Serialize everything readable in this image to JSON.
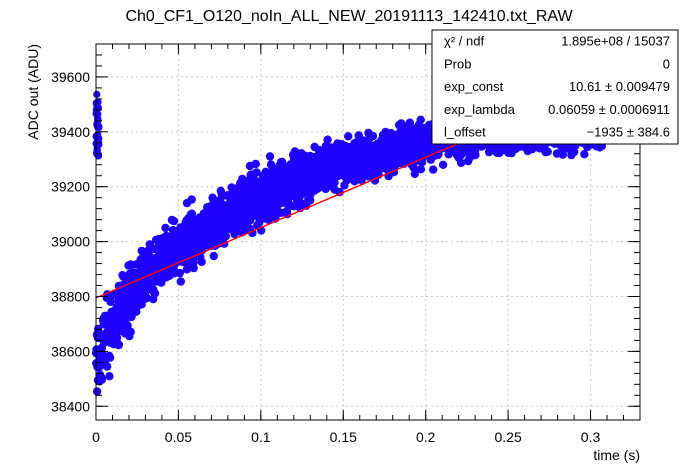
{
  "chart_data": {
    "type": "scatter",
    "title": "Ch0_CF1_O120_noIn_ALL_NEW_20191113_142410.txt_RAW",
    "xlabel": "time (s)",
    "ylabel": "ADC out (ADU)",
    "xlim": [
      0,
      0.33
    ],
    "ylim": [
      38350,
      39720
    ],
    "xticks": [
      {
        "value": 0,
        "label": "0"
      },
      {
        "value": 0.05,
        "label": "0.05"
      },
      {
        "value": 0.1,
        "label": "0.1"
      },
      {
        "value": 0.15,
        "label": "0.15"
      },
      {
        "value": 0.2,
        "label": "0.2"
      },
      {
        "value": 0.25,
        "label": "0.25"
      },
      {
        "value": 0.3,
        "label": "0.3"
      }
    ],
    "yticks": [
      {
        "value": 38400,
        "label": "38400"
      },
      {
        "value": 38600,
        "label": "38600"
      },
      {
        "value": 38800,
        "label": "38800"
      },
      {
        "value": 39000,
        "label": "39000"
      },
      {
        "value": 39200,
        "label": "39200"
      },
      {
        "value": 39400,
        "label": "39400"
      },
      {
        "value": 39600,
        "label": "39600"
      }
    ],
    "series": [
      {
        "color": "#1f00ff",
        "marker": "circle",
        "x": [
          0,
          0.002,
          0.005,
          0.01,
          0.015,
          0.02,
          0.03,
          0.04,
          0.05,
          0.06,
          0.07,
          0.08,
          0.09,
          0.1,
          0.11,
          0.12,
          0.13,
          0.14,
          0.15,
          0.16,
          0.17,
          0.18,
          0.19,
          0.2,
          0.21,
          0.22,
          0.23,
          0.24,
          0.25,
          0.26,
          0.27,
          0.28,
          0.29,
          0.3,
          0.308
        ],
        "y_center": [
          38580,
          38600,
          38650,
          38700,
          38760,
          38800,
          38870,
          38930,
          38980,
          39020,
          39060,
          39100,
          39130,
          39160,
          39190,
          39215,
          39240,
          39260,
          39280,
          39300,
          39315,
          39330,
          39345,
          39360,
          39370,
          39380,
          39388,
          39395,
          39400,
          39405,
          39410,
          39412,
          39415,
          39417,
          39418
        ],
        "y_low": [
          38420,
          38430,
          38440,
          38500,
          38560,
          38620,
          38720,
          38780,
          38830,
          38880,
          38920,
          38960,
          38990,
          39020,
          39060,
          39090,
          39120,
          39140,
          39160,
          39180,
          39200,
          39215,
          39230,
          39245,
          39255,
          39265,
          39275,
          39285,
          39290,
          39295,
          39300,
          39300,
          39300,
          39300,
          39320
        ],
        "y_high": [
          38740,
          38760,
          38800,
          38850,
          38900,
          38960,
          39030,
          39090,
          39140,
          39180,
          39220,
          39260,
          39290,
          39320,
          39340,
          39360,
          39380,
          39400,
          39410,
          39420,
          39430,
          39440,
          39450,
          39460,
          39470,
          39480,
          39485,
          39490,
          39495,
          39500,
          39500,
          39500,
          39500,
          39500,
          39480
        ],
        "outlier_cluster": {
          "x": 0,
          "y_min": 39310,
          "y_max": 39540
        }
      }
    ],
    "fit": {
      "color": "#ff0000",
      "x": [
        0,
        0.33
      ],
      "y": [
        38795,
        39640
      ]
    },
    "stats_box": {
      "position": "top-right",
      "rows": [
        {
          "label": "χ² / ndf",
          "value": "1.895e+08 / 15037"
        },
        {
          "label": "Prob",
          "value": "0"
        },
        {
          "label": "exp_const",
          "value": "10.61 ± 0.009479"
        },
        {
          "label": "exp_lambda",
          "value": "0.06059 ± 0.0006911"
        },
        {
          "label": "l_offset",
          "value": "−1935 ± 384.6"
        }
      ]
    }
  }
}
